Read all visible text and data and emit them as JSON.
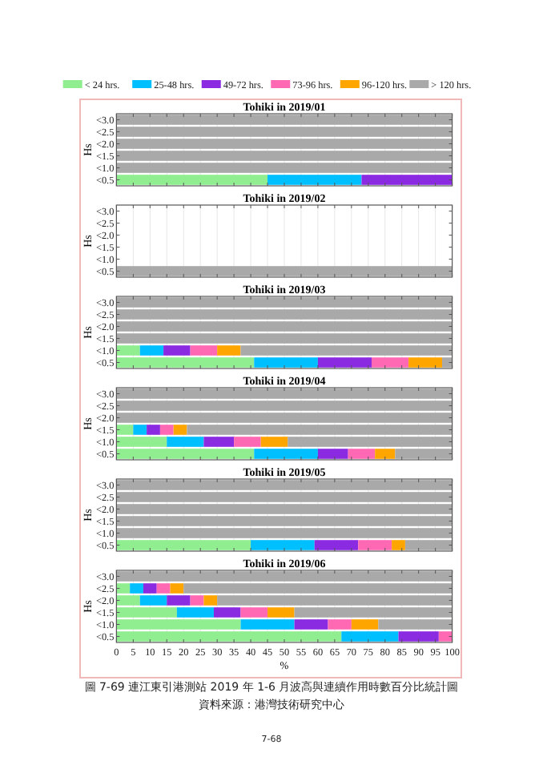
{
  "chart_data": [
    {
      "type": "bar",
      "orientation": "horizontal",
      "stacked": true,
      "title": "Tohiki in 2019/01",
      "ylabel": "Hs",
      "categories": [
        "<3.0",
        "<2.5",
        "<2.0",
        "<1.5",
        "<1.0",
        "<0.5"
      ],
      "xlim": [
        0,
        100
      ],
      "xticks": [
        0,
        5,
        10,
        15,
        20,
        25,
        30,
        35,
        40,
        45,
        50,
        55,
        60,
        65,
        70,
        75,
        80,
        85,
        90,
        95,
        100
      ],
      "tick_labels": "y",
      "grid": "x",
      "legend": "top",
      "series": [
        {
          "name": "< 24 hrs.",
          "color": "#90ee90",
          "values": [
            0,
            0,
            0,
            0,
            0,
            45
          ]
        },
        {
          "name": "25-48 hrs.",
          "color": "#00bfff",
          "values": [
            0,
            0,
            0,
            0,
            0,
            28
          ]
        },
        {
          "name": "49-72 hrs.",
          "color": "#8a2be2",
          "values": [
            0,
            0,
            0,
            0,
            0,
            27
          ]
        },
        {
          "name": "73-96 hrs.",
          "color": "#ff69b4",
          "values": [
            0,
            0,
            0,
            0,
            0,
            0
          ]
        },
        {
          "name": "96-120 hrs.",
          "color": "#ffa500",
          "values": [
            0,
            0,
            0,
            0,
            0,
            0
          ]
        },
        {
          "name": "> 120 hrs.",
          "color": "#a9a9a9",
          "values": [
            100,
            100,
            100,
            100,
            100,
            0
          ]
        }
      ]
    },
    {
      "type": "bar",
      "orientation": "horizontal",
      "stacked": true,
      "title": "Tohiki in 2019/02",
      "ylabel": "Hs",
      "categories": [
        "<3.0",
        "<2.5",
        "<2.0",
        "<1.5",
        "<1.0",
        "<0.5"
      ],
      "xlim": [
        0,
        100
      ],
      "xticks": [
        0,
        5,
        10,
        15,
        20,
        25,
        30,
        35,
        40,
        45,
        50,
        55,
        60,
        65,
        70,
        75,
        80,
        85,
        90,
        95,
        100
      ],
      "tick_labels": "y",
      "grid": "x",
      "series": [
        {
          "color": "#a9a9a9",
          "values": [
            0,
            0,
            0,
            0,
            0,
            100
          ]
        }
      ]
    },
    {
      "type": "bar",
      "orientation": "horizontal",
      "stacked": true,
      "title": "Tohiki in 2019/03",
      "ylabel": "Hs",
      "categories": [
        "<3.0",
        "<2.5",
        "<2.0",
        "<1.5",
        "<1.0",
        "<0.5"
      ],
      "xlim": [
        0,
        100
      ],
      "xticks": [
        0,
        5,
        10,
        15,
        20,
        25,
        30,
        35,
        40,
        45,
        50,
        55,
        60,
        65,
        70,
        75,
        80,
        85,
        90,
        95,
        100
      ],
      "tick_labels": "y",
      "grid": "x",
      "series": [
        {
          "color": "#90ee90",
          "values": [
            0,
            0,
            0,
            0,
            7,
            41
          ]
        },
        {
          "color": "#00bfff",
          "values": [
            0,
            0,
            0,
            0,
            7,
            19
          ]
        },
        {
          "color": "#8a2be2",
          "values": [
            0,
            0,
            0,
            0,
            8,
            16
          ]
        },
        {
          "color": "#ff69b4",
          "values": [
            0,
            0,
            0,
            0,
            8,
            11
          ]
        },
        {
          "color": "#ffa500",
          "values": [
            0,
            0,
            0,
            0,
            7,
            10
          ]
        },
        {
          "color": "#a9a9a9",
          "values": [
            100,
            100,
            100,
            100,
            63,
            3
          ]
        }
      ]
    },
    {
      "type": "bar",
      "orientation": "horizontal",
      "stacked": true,
      "title": "Tohiki in 2019/04",
      "ylabel": "Hs",
      "categories": [
        "<3.0",
        "<2.5",
        "<2.0",
        "<1.5",
        "<1.0",
        "<0.5"
      ],
      "xlim": [
        0,
        100
      ],
      "xticks": [
        0,
        5,
        10,
        15,
        20,
        25,
        30,
        35,
        40,
        45,
        50,
        55,
        60,
        65,
        70,
        75,
        80,
        85,
        90,
        95,
        100
      ],
      "tick_labels": "y",
      "grid": "x",
      "series": [
        {
          "color": "#90ee90",
          "values": [
            0,
            0,
            0,
            5,
            15,
            41
          ]
        },
        {
          "color": "#00bfff",
          "values": [
            0,
            0,
            0,
            4,
            11,
            19
          ]
        },
        {
          "color": "#8a2be2",
          "values": [
            0,
            0,
            0,
            4,
            9,
            9
          ]
        },
        {
          "color": "#ff69b4",
          "values": [
            0,
            0,
            0,
            4,
            8,
            8
          ]
        },
        {
          "color": "#ffa500",
          "values": [
            0,
            0,
            0,
            4,
            8,
            6
          ]
        },
        {
          "color": "#a9a9a9",
          "values": [
            100,
            100,
            100,
            79,
            49,
            17
          ]
        }
      ]
    },
    {
      "type": "bar",
      "orientation": "horizontal",
      "stacked": true,
      "title": "Tohiki in 2019/05",
      "ylabel": "Hs",
      "categories": [
        "<3.0",
        "<2.5",
        "<2.0",
        "<1.5",
        "<1.0",
        "<0.5"
      ],
      "xlim": [
        0,
        100
      ],
      "xticks": [
        0,
        5,
        10,
        15,
        20,
        25,
        30,
        35,
        40,
        45,
        50,
        55,
        60,
        65,
        70,
        75,
        80,
        85,
        90,
        95,
        100
      ],
      "tick_labels": "y",
      "grid": "x",
      "series": [
        {
          "color": "#90ee90",
          "values": [
            0,
            0,
            0,
            0,
            0,
            40
          ]
        },
        {
          "color": "#00bfff",
          "values": [
            0,
            0,
            0,
            0,
            0,
            19
          ]
        },
        {
          "color": "#8a2be2",
          "values": [
            0,
            0,
            0,
            0,
            0,
            13
          ]
        },
        {
          "color": "#ff69b4",
          "values": [
            0,
            0,
            0,
            0,
            0,
            10
          ]
        },
        {
          "color": "#ffa500",
          "values": [
            0,
            0,
            0,
            0,
            0,
            4
          ]
        },
        {
          "color": "#a9a9a9",
          "values": [
            100,
            100,
            100,
            100,
            100,
            14
          ]
        }
      ]
    },
    {
      "type": "bar",
      "orientation": "horizontal",
      "stacked": true,
      "title": "Tohiki in 2019/06",
      "ylabel": "Hs",
      "xlabel": "%",
      "categories": [
        "<3.0",
        "<2.5",
        "<2.0",
        "<1.5",
        "<1.0",
        "<0.5"
      ],
      "xlim": [
        0,
        100
      ],
      "xticks": [
        0,
        5,
        10,
        15,
        20,
        25,
        30,
        35,
        40,
        45,
        50,
        55,
        60,
        65,
        70,
        75,
        80,
        85,
        90,
        95,
        100
      ],
      "grid": "x",
      "series": [
        {
          "color": "#90ee90",
          "values": [
            0,
            4,
            7,
            18,
            37,
            67
          ]
        },
        {
          "color": "#00bfff",
          "values": [
            0,
            4,
            8,
            11,
            16,
            17
          ]
        },
        {
          "color": "#8a2be2",
          "values": [
            0,
            4,
            7,
            8,
            10,
            12
          ]
        },
        {
          "color": "#ff69b4",
          "values": [
            0,
            4,
            4,
            8,
            7,
            4
          ]
        },
        {
          "color": "#ffa500",
          "values": [
            0,
            4,
            4,
            8,
            8,
            0
          ]
        },
        {
          "color": "#a9a9a9",
          "values": [
            100,
            80,
            70,
            47,
            22,
            0
          ]
        }
      ],
      "annotations": [
        "圖 7-69 連江東引港測站 2019 年 1-6 月波高與連續作用時數百分比統計圖",
        "資料來源：港灣技術研究中心",
        "7-68"
      ]
    }
  ]
}
